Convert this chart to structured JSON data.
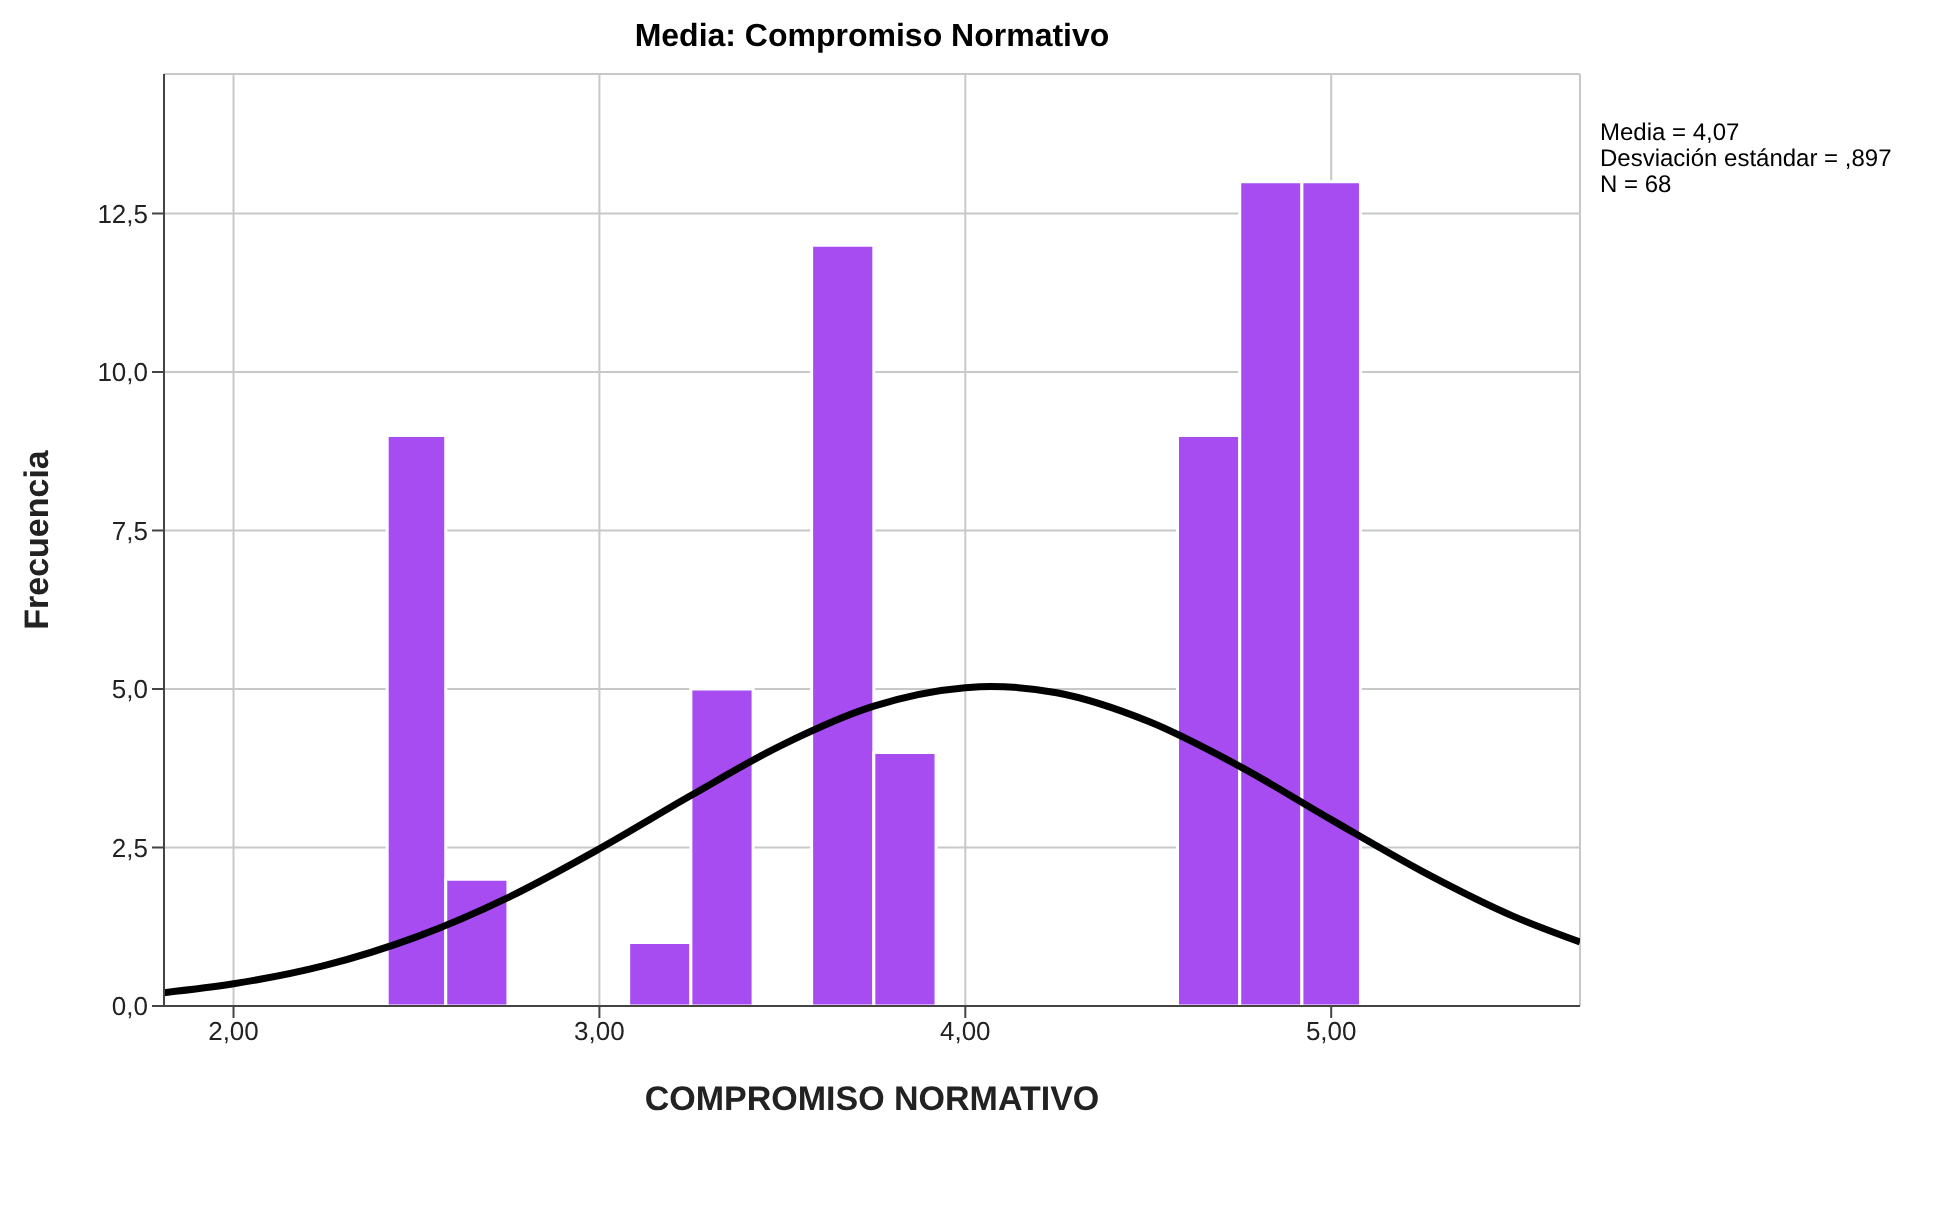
{
  "chart_data": {
    "type": "histogram",
    "title": "Media: Compromiso Normativo",
    "xlabel": "COMPROMISO NORMATIVO",
    "ylabel": "Frecuencia",
    "color": "#a64cf0",
    "bins": [
      2.42,
      2.58,
      2.75,
      3.08,
      3.25,
      3.42,
      3.58,
      3.75,
      3.92,
      4.58,
      4.75,
      4.92,
      5.08
    ],
    "values": [
      9,
      2,
      0,
      1,
      5,
      0,
      12,
      4,
      0,
      9,
      13,
      13
    ],
    "series": [
      {
        "type": "line",
        "color": "#000000",
        "x": [
          1.81,
          2.0,
          2.25,
          2.5,
          2.75,
          3.0,
          3.25,
          3.5,
          3.75,
          4.0,
          4.07,
          4.25,
          4.5,
          4.75,
          5.0,
          5.25,
          5.5,
          5.68
        ],
        "values": [
          0.21,
          0.35,
          0.64,
          1.09,
          1.71,
          2.48,
          3.32,
          4.12,
          4.73,
          5.02,
          5.04,
          4.94,
          4.49,
          3.78,
          2.94,
          2.12,
          1.41,
          1.01
        ]
      }
    ],
    "xlim": [
      1.81,
      5.68
    ],
    "xticks": [
      {
        "value": 2,
        "label": "2,00"
      },
      {
        "value": 3,
        "label": "3,00"
      },
      {
        "value": 4,
        "label": "4,00"
      },
      {
        "value": 5,
        "label": "5,00"
      }
    ],
    "ylim": [
      0,
      14.7
    ],
    "yticks": [
      {
        "value": 0,
        "label": "0,0"
      },
      {
        "value": 2.5,
        "label": "2,5"
      },
      {
        "value": 5,
        "label": "5,0"
      },
      {
        "value": 7.5,
        "label": "7,5"
      },
      {
        "value": 10,
        "label": "10,0"
      },
      {
        "value": 12.5,
        "label": "12,5"
      }
    ],
    "grid": true,
    "annotations": [
      "Media = 4,07",
      "Desviación estándar = ,897",
      "N = 68"
    ]
  }
}
